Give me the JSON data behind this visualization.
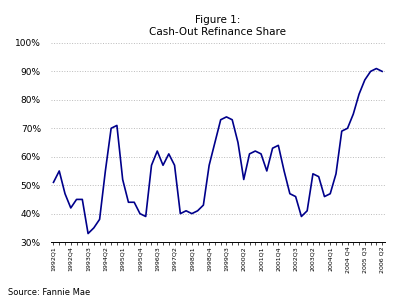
{
  "title_line1": "Figure 1:",
  "title_line2": "Cash-Out Refinance Share",
  "source": "Source: Fannie Mae",
  "line_color": "#00008B",
  "line_width": 1.2,
  "background_color": "#ffffff",
  "grid_color": "#bbbbbb",
  "ylim": [
    30,
    100
  ],
  "yticks": [
    30,
    40,
    50,
    60,
    70,
    80,
    90,
    100
  ],
  "label_xticks": [
    0,
    3,
    6,
    9,
    12,
    15,
    18,
    21,
    24,
    27,
    30,
    33,
    36,
    39,
    42,
    45,
    48,
    51,
    54,
    57
  ],
  "labels": [
    "1992Q1",
    "1992Q4",
    "1993Q3",
    "1994Q2",
    "1995Q1",
    "1995Q4",
    "1996Q3",
    "1997Q2",
    "1998Q1",
    "1998Q4",
    "1999Q3",
    "2000Q2",
    "2001Q1",
    "2001Q4",
    "2002Q3",
    "2003Q2",
    "2004Q1",
    "2004 Q4",
    "2005 Q3",
    "2006 Q2"
  ],
  "data": [
    [
      0,
      51
    ],
    [
      1,
      55
    ],
    [
      2,
      47
    ],
    [
      3,
      42
    ],
    [
      4,
      45
    ],
    [
      5,
      45
    ],
    [
      6,
      33
    ],
    [
      7,
      35
    ],
    [
      8,
      38
    ],
    [
      9,
      55
    ],
    [
      10,
      70
    ],
    [
      11,
      71
    ],
    [
      12,
      52
    ],
    [
      13,
      44
    ],
    [
      14,
      44
    ],
    [
      15,
      40
    ],
    [
      16,
      39
    ],
    [
      17,
      57
    ],
    [
      18,
      62
    ],
    [
      19,
      57
    ],
    [
      20,
      61
    ],
    [
      21,
      57
    ],
    [
      22,
      40
    ],
    [
      23,
      41
    ],
    [
      24,
      40
    ],
    [
      25,
      41
    ],
    [
      26,
      43
    ],
    [
      27,
      57
    ],
    [
      28,
      65
    ],
    [
      29,
      73
    ],
    [
      30,
      74
    ],
    [
      31,
      73
    ],
    [
      32,
      65
    ],
    [
      33,
      52
    ],
    [
      34,
      61
    ],
    [
      35,
      62
    ],
    [
      36,
      61
    ],
    [
      37,
      55
    ],
    [
      38,
      63
    ],
    [
      39,
      64
    ],
    [
      40,
      55
    ],
    [
      41,
      47
    ],
    [
      42,
      46
    ],
    [
      43,
      39
    ],
    [
      44,
      41
    ],
    [
      45,
      54
    ],
    [
      46,
      53
    ],
    [
      47,
      46
    ],
    [
      48,
      47
    ],
    [
      49,
      54
    ],
    [
      50,
      69
    ],
    [
      51,
      70
    ],
    [
      52,
      75
    ],
    [
      53,
      82
    ],
    [
      54,
      87
    ],
    [
      55,
      90
    ],
    [
      56,
      91
    ],
    [
      57,
      90
    ]
  ]
}
